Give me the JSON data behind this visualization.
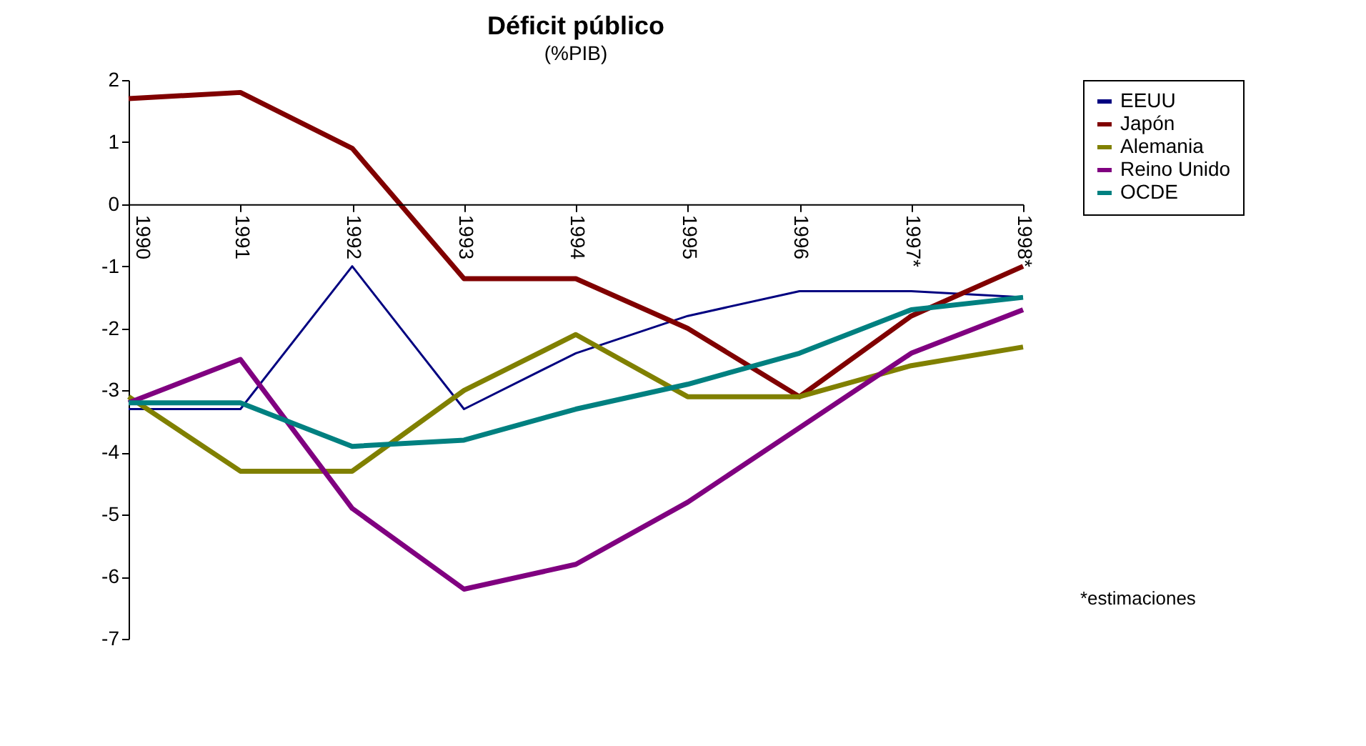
{
  "chart_data": {
    "type": "line",
    "title": "Déficit público",
    "subtitle": "(%PIB)",
    "categories": [
      "1990",
      "1991",
      "1992",
      "1993",
      "1994",
      "1995",
      "1996",
      "1997*",
      "1998*"
    ],
    "series": [
      {
        "name": "EEUU",
        "color": "#000080",
        "values": [
          -3.3,
          -3.3,
          -1.0,
          -3.3,
          -2.4,
          -1.8,
          -1.4,
          -1.4,
          -1.5
        ]
      },
      {
        "name": "Japón",
        "color": "#800000",
        "values": [
          1.7,
          1.8,
          0.9,
          -1.2,
          -1.2,
          -2.0,
          -3.1,
          -1.8,
          -1.0
        ]
      },
      {
        "name": "Alemania",
        "color": "#808000",
        "values": [
          -3.1,
          -4.3,
          -4.3,
          -3.0,
          -2.1,
          -3.1,
          -3.1,
          -2.6,
          -2.3
        ]
      },
      {
        "name": "Reino Unido",
        "color": "#800080",
        "values": [
          -3.2,
          -2.5,
          -4.9,
          -6.2,
          -5.8,
          -4.8,
          -3.6,
          -2.4,
          -1.7
        ]
      },
      {
        "name": "OCDE",
        "color": "#008080",
        "values": [
          -3.2,
          -3.2,
          -3.9,
          -3.8,
          -3.3,
          -2.9,
          -2.4,
          -1.7,
          -1.5
        ]
      }
    ],
    "ylim": [
      -7,
      2
    ],
    "yticks": [
      -7,
      -6,
      -5,
      -4,
      -3,
      -2,
      -1,
      0,
      1,
      2
    ],
    "grid": false,
    "legend": "right",
    "marker": "none",
    "line_style": "solid",
    "annotations": [
      "*estimaciones"
    ]
  }
}
